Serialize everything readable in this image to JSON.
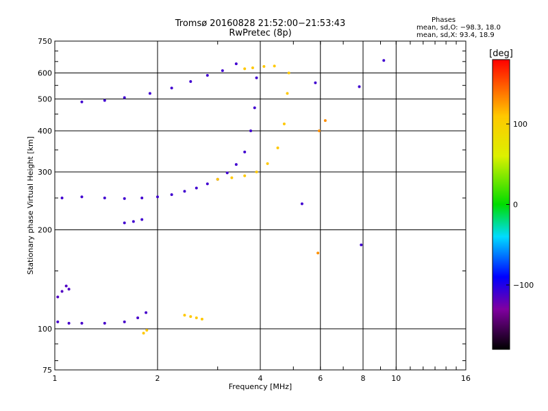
{
  "title_line1": "Tromsø 20160828 21:52:00−21:53:43",
  "title_line2": "RwPretec (8p)",
  "stats": {
    "title": "Phases",
    "o_line": "mean, sd,O: −98.3, 18.0",
    "x_line": "mean, sd,X:  93.4, 18.9"
  },
  "chart_data": {
    "type": "scatter",
    "title": "Tromsø 20160828 21:52:00−21:53:43  RwPretec (8p)",
    "xlabel": "Frequency [MHz]",
    "ylabel": "Stationary phase Virtual Height [km]",
    "x_scale": "log",
    "y_scale": "log",
    "xlim": [
      1,
      16
    ],
    "ylim": [
      75,
      750
    ],
    "x_ticks": [
      {
        "value": 1,
        "label": "1",
        "grid": false
      },
      {
        "value": 2,
        "label": "2",
        "grid": true
      },
      {
        "value": 4,
        "label": "4",
        "grid": true
      },
      {
        "value": 6,
        "label": "6",
        "grid": true
      },
      {
        "value": 8,
        "label": "8",
        "grid": true
      },
      {
        "value": 10,
        "label": "10",
        "grid": true
      },
      {
        "value": 16,
        "label": "16",
        "grid": false
      }
    ],
    "y_ticks": [
      {
        "value": 75,
        "label": "75",
        "grid": false
      },
      {
        "value": 100,
        "label": "100",
        "grid": true
      },
      {
        "value": 200,
        "label": "200",
        "grid": true
      },
      {
        "value": 300,
        "label": "300",
        "grid": true
      },
      {
        "value": 400,
        "label": "400",
        "grid": true
      },
      {
        "value": 500,
        "label": "500",
        "grid": true
      },
      {
        "value": 600,
        "label": "600",
        "grid": true
      },
      {
        "value": 750,
        "label": "750",
        "grid": false
      }
    ],
    "grid": true,
    "colorbar": {
      "label": "[deg]",
      "range": [
        -180,
        180
      ],
      "ticks": [
        {
          "value": 100,
          "label": "100"
        },
        {
          "value": 0,
          "label": "0"
        },
        {
          "value": -100,
          "label": "−100"
        }
      ]
    },
    "series": [
      {
        "phase": -110,
        "points": [
          [
            1.05,
            250
          ],
          [
            1.2,
            252
          ],
          [
            1.4,
            250
          ],
          [
            1.6,
            249
          ],
          [
            1.8,
            250
          ],
          [
            2.0,
            252
          ],
          [
            2.2,
            256
          ],
          [
            2.4,
            262
          ],
          [
            2.6,
            268
          ],
          [
            2.8,
            276
          ],
          [
            3.0,
            285
          ],
          [
            3.2,
            298
          ],
          [
            3.4,
            316
          ],
          [
            3.6,
            345
          ],
          [
            3.75,
            400
          ],
          [
            3.85,
            470
          ],
          [
            3.9,
            580
          ]
        ]
      },
      {
        "phase": 110,
        "points": [
          [
            3.0,
            285
          ],
          [
            3.3,
            288
          ],
          [
            3.6,
            292
          ],
          [
            3.9,
            300
          ],
          [
            4.2,
            318
          ],
          [
            4.5,
            355
          ],
          [
            4.7,
            420
          ],
          [
            4.8,
            520
          ],
          [
            4.85,
            600
          ]
        ]
      },
      {
        "phase": -110,
        "points": [
          [
            1.2,
            490
          ],
          [
            1.4,
            495
          ],
          [
            1.6,
            505
          ],
          [
            1.9,
            520
          ],
          [
            2.2,
            540
          ],
          [
            2.5,
            565
          ],
          [
            2.8,
            590
          ],
          [
            3.1,
            610
          ],
          [
            3.4,
            640
          ]
        ]
      },
      {
        "phase": -112,
        "points": [
          [
            1.02,
            105
          ],
          [
            1.1,
            104
          ],
          [
            1.2,
            104
          ],
          [
            1.4,
            104
          ],
          [
            1.6,
            105
          ],
          [
            1.75,
            108
          ],
          [
            1.85,
            112
          ]
        ]
      },
      {
        "phase": -115,
        "points": [
          [
            1.02,
            125
          ],
          [
            1.05,
            130
          ],
          [
            1.08,
            135
          ],
          [
            1.1,
            132
          ]
        ]
      },
      {
        "phase": 110,
        "points": [
          [
            1.82,
            97
          ],
          [
            1.86,
            99
          ],
          [
            2.4,
            110
          ],
          [
            2.5,
            109
          ],
          [
            2.6,
            108
          ],
          [
            2.7,
            107
          ],
          [
            3.6,
            618
          ],
          [
            3.8,
            622
          ],
          [
            4.1,
            628
          ],
          [
            4.4,
            630
          ]
        ]
      },
      {
        "phase": -110,
        "points": [
          [
            1.6,
            210
          ],
          [
            1.7,
            212
          ],
          [
            1.8,
            215
          ],
          [
            5.3,
            240
          ],
          [
            5.8,
            560
          ],
          [
            7.8,
            545
          ],
          [
            9.2,
            655
          ],
          [
            7.9,
            180
          ]
        ]
      },
      {
        "phase": 130,
        "points": [
          [
            5.9,
            170
          ],
          [
            5.95,
            400
          ],
          [
            6.2,
            430
          ]
        ]
      }
    ]
  }
}
